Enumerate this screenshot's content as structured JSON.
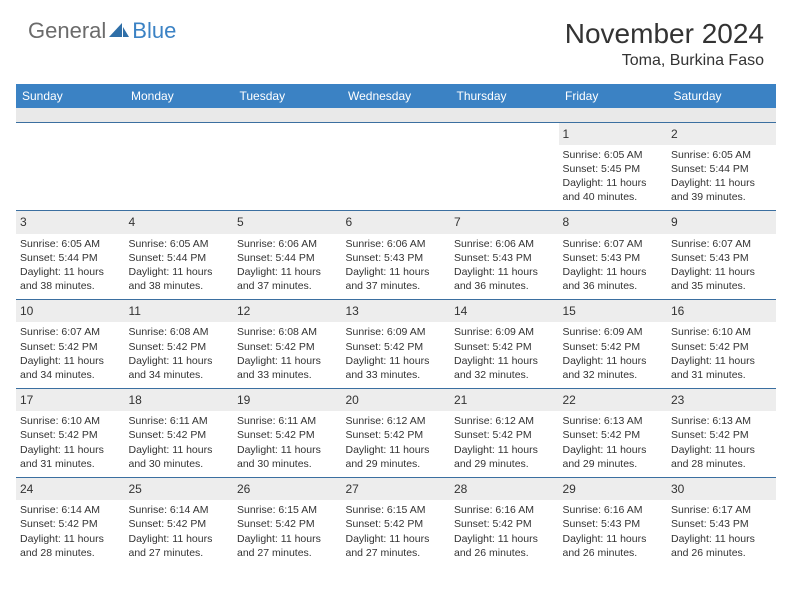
{
  "logo": {
    "part1": "General",
    "part2": "Blue"
  },
  "title": "November 2024",
  "location": "Toma, Burkina Faso",
  "colors": {
    "header_bg": "#3b82c4",
    "header_text": "#ffffff",
    "daynum_bg": "#ededed",
    "divider": "#3b6fa0",
    "body_text": "#333333",
    "logo_gray": "#6b6b6b",
    "logo_blue": "#3b82c4"
  },
  "typography": {
    "title_fontsize": 28,
    "location_fontsize": 16,
    "dow_fontsize": 12,
    "cell_fontsize": 10.5
  },
  "daysOfWeek": [
    "Sunday",
    "Monday",
    "Tuesday",
    "Wednesday",
    "Thursday",
    "Friday",
    "Saturday"
  ],
  "weeks": [
    [
      {
        "n": "",
        "sr": "",
        "ss": "",
        "dl": ""
      },
      {
        "n": "",
        "sr": "",
        "ss": "",
        "dl": ""
      },
      {
        "n": "",
        "sr": "",
        "ss": "",
        "dl": ""
      },
      {
        "n": "",
        "sr": "",
        "ss": "",
        "dl": ""
      },
      {
        "n": "",
        "sr": "",
        "ss": "",
        "dl": ""
      },
      {
        "n": "1",
        "sr": "Sunrise: 6:05 AM",
        "ss": "Sunset: 5:45 PM",
        "dl": "Daylight: 11 hours and 40 minutes."
      },
      {
        "n": "2",
        "sr": "Sunrise: 6:05 AM",
        "ss": "Sunset: 5:44 PM",
        "dl": "Daylight: 11 hours and 39 minutes."
      }
    ],
    [
      {
        "n": "3",
        "sr": "Sunrise: 6:05 AM",
        "ss": "Sunset: 5:44 PM",
        "dl": "Daylight: 11 hours and 38 minutes."
      },
      {
        "n": "4",
        "sr": "Sunrise: 6:05 AM",
        "ss": "Sunset: 5:44 PM",
        "dl": "Daylight: 11 hours and 38 minutes."
      },
      {
        "n": "5",
        "sr": "Sunrise: 6:06 AM",
        "ss": "Sunset: 5:44 PM",
        "dl": "Daylight: 11 hours and 37 minutes."
      },
      {
        "n": "6",
        "sr": "Sunrise: 6:06 AM",
        "ss": "Sunset: 5:43 PM",
        "dl": "Daylight: 11 hours and 37 minutes."
      },
      {
        "n": "7",
        "sr": "Sunrise: 6:06 AM",
        "ss": "Sunset: 5:43 PM",
        "dl": "Daylight: 11 hours and 36 minutes."
      },
      {
        "n": "8",
        "sr": "Sunrise: 6:07 AM",
        "ss": "Sunset: 5:43 PM",
        "dl": "Daylight: 11 hours and 36 minutes."
      },
      {
        "n": "9",
        "sr": "Sunrise: 6:07 AM",
        "ss": "Sunset: 5:43 PM",
        "dl": "Daylight: 11 hours and 35 minutes."
      }
    ],
    [
      {
        "n": "10",
        "sr": "Sunrise: 6:07 AM",
        "ss": "Sunset: 5:42 PM",
        "dl": "Daylight: 11 hours and 34 minutes."
      },
      {
        "n": "11",
        "sr": "Sunrise: 6:08 AM",
        "ss": "Sunset: 5:42 PM",
        "dl": "Daylight: 11 hours and 34 minutes."
      },
      {
        "n": "12",
        "sr": "Sunrise: 6:08 AM",
        "ss": "Sunset: 5:42 PM",
        "dl": "Daylight: 11 hours and 33 minutes."
      },
      {
        "n": "13",
        "sr": "Sunrise: 6:09 AM",
        "ss": "Sunset: 5:42 PM",
        "dl": "Daylight: 11 hours and 33 minutes."
      },
      {
        "n": "14",
        "sr": "Sunrise: 6:09 AM",
        "ss": "Sunset: 5:42 PM",
        "dl": "Daylight: 11 hours and 32 minutes."
      },
      {
        "n": "15",
        "sr": "Sunrise: 6:09 AM",
        "ss": "Sunset: 5:42 PM",
        "dl": "Daylight: 11 hours and 32 minutes."
      },
      {
        "n": "16",
        "sr": "Sunrise: 6:10 AM",
        "ss": "Sunset: 5:42 PM",
        "dl": "Daylight: 11 hours and 31 minutes."
      }
    ],
    [
      {
        "n": "17",
        "sr": "Sunrise: 6:10 AM",
        "ss": "Sunset: 5:42 PM",
        "dl": "Daylight: 11 hours and 31 minutes."
      },
      {
        "n": "18",
        "sr": "Sunrise: 6:11 AM",
        "ss": "Sunset: 5:42 PM",
        "dl": "Daylight: 11 hours and 30 minutes."
      },
      {
        "n": "19",
        "sr": "Sunrise: 6:11 AM",
        "ss": "Sunset: 5:42 PM",
        "dl": "Daylight: 11 hours and 30 minutes."
      },
      {
        "n": "20",
        "sr": "Sunrise: 6:12 AM",
        "ss": "Sunset: 5:42 PM",
        "dl": "Daylight: 11 hours and 29 minutes."
      },
      {
        "n": "21",
        "sr": "Sunrise: 6:12 AM",
        "ss": "Sunset: 5:42 PM",
        "dl": "Daylight: 11 hours and 29 minutes."
      },
      {
        "n": "22",
        "sr": "Sunrise: 6:13 AM",
        "ss": "Sunset: 5:42 PM",
        "dl": "Daylight: 11 hours and 29 minutes."
      },
      {
        "n": "23",
        "sr": "Sunrise: 6:13 AM",
        "ss": "Sunset: 5:42 PM",
        "dl": "Daylight: 11 hours and 28 minutes."
      }
    ],
    [
      {
        "n": "24",
        "sr": "Sunrise: 6:14 AM",
        "ss": "Sunset: 5:42 PM",
        "dl": "Daylight: 11 hours and 28 minutes."
      },
      {
        "n": "25",
        "sr": "Sunrise: 6:14 AM",
        "ss": "Sunset: 5:42 PM",
        "dl": "Daylight: 11 hours and 27 minutes."
      },
      {
        "n": "26",
        "sr": "Sunrise: 6:15 AM",
        "ss": "Sunset: 5:42 PM",
        "dl": "Daylight: 11 hours and 27 minutes."
      },
      {
        "n": "27",
        "sr": "Sunrise: 6:15 AM",
        "ss": "Sunset: 5:42 PM",
        "dl": "Daylight: 11 hours and 27 minutes."
      },
      {
        "n": "28",
        "sr": "Sunrise: 6:16 AM",
        "ss": "Sunset: 5:42 PM",
        "dl": "Daylight: 11 hours and 26 minutes."
      },
      {
        "n": "29",
        "sr": "Sunrise: 6:16 AM",
        "ss": "Sunset: 5:43 PM",
        "dl": "Daylight: 11 hours and 26 minutes."
      },
      {
        "n": "30",
        "sr": "Sunrise: 6:17 AM",
        "ss": "Sunset: 5:43 PM",
        "dl": "Daylight: 11 hours and 26 minutes."
      }
    ]
  ]
}
